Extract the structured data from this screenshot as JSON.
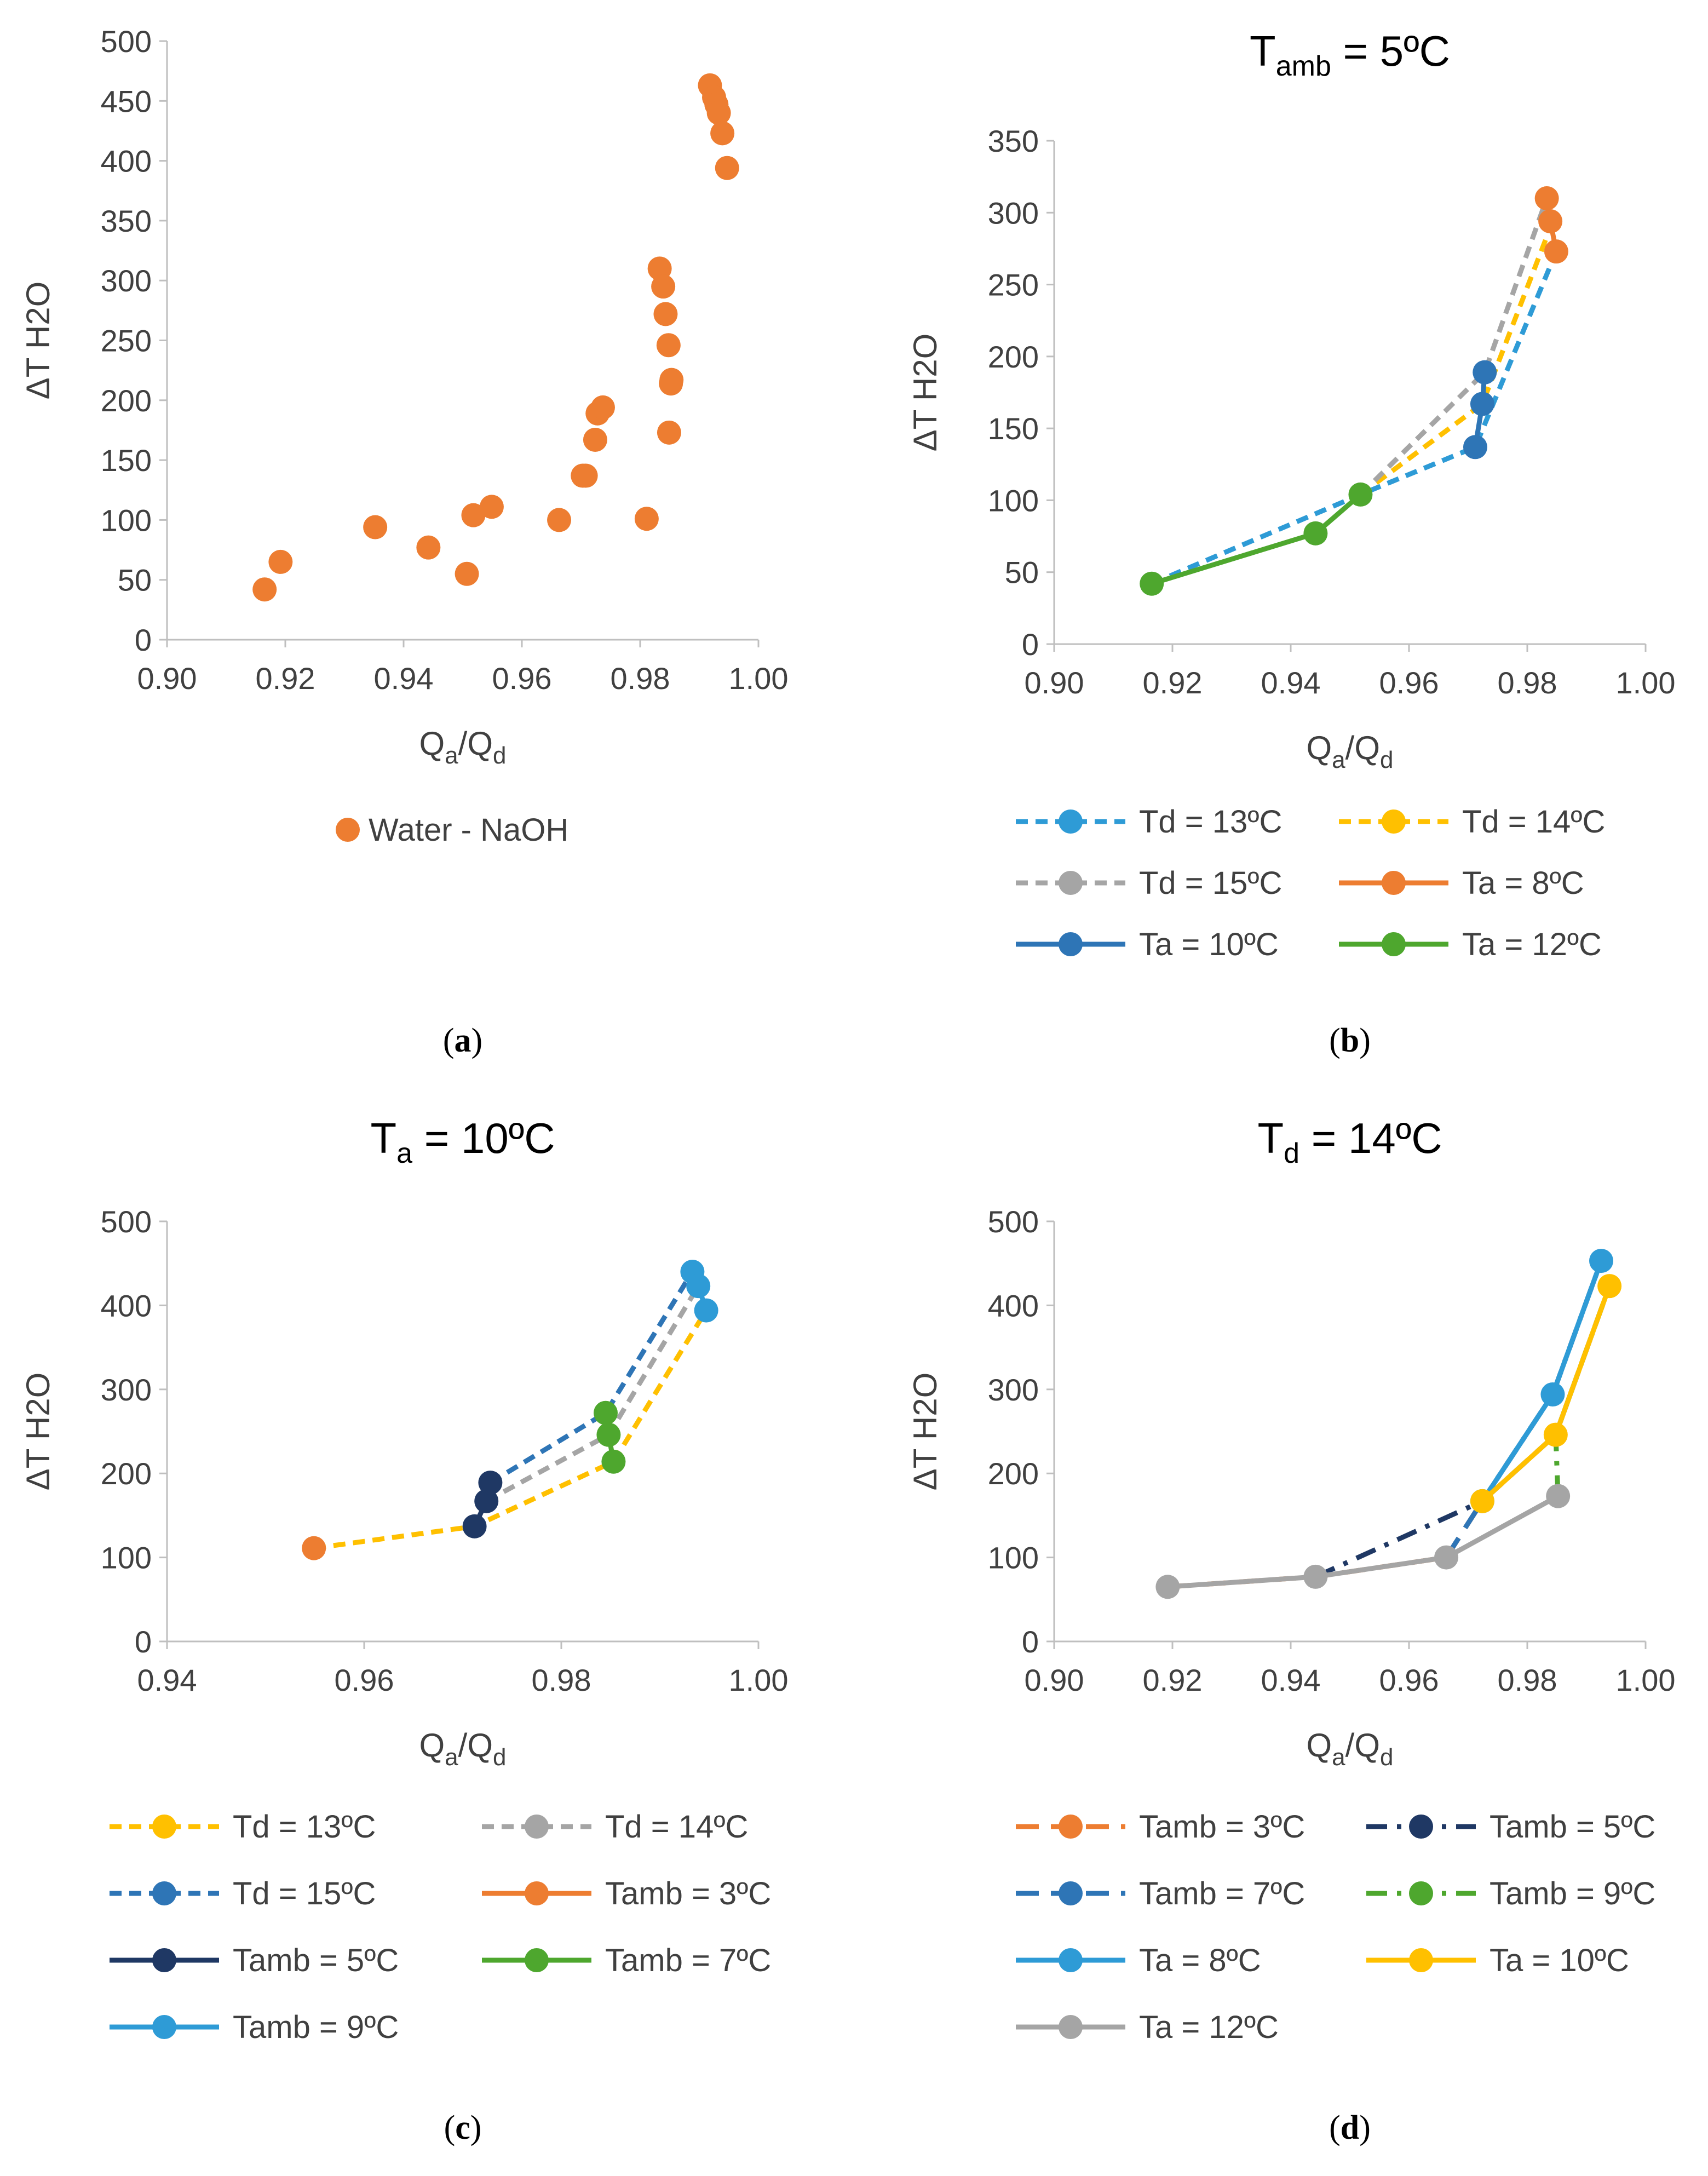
{
  "chart_data": [
    {
      "id": "a",
      "type": "scatter",
      "panel_label": "a",
      "title": "",
      "xlabel": "Qa/Qd",
      "ylabel": "ΔT H2O",
      "xlim": [
        0.9,
        1.0
      ],
      "ylim": [
        0,
        500
      ],
      "xticks": [
        0.9,
        0.92,
        0.94,
        0.96,
        0.98,
        1.0
      ],
      "yticks": [
        0,
        50,
        100,
        150,
        200,
        250,
        300,
        350,
        400,
        450,
        500
      ],
      "x_decimals": 2,
      "legend_layout": "single-below",
      "series": [
        {
          "name": "Water - NaOH",
          "color": "#ED7D31",
          "line": "none",
          "marker": true,
          "x": [
            0.9165,
            0.9192,
            0.9352,
            0.9442,
            0.9507,
            0.9518,
            0.9549,
            0.9663,
            0.9703,
            0.9708,
            0.9724,
            0.9728,
            0.9737,
            0.9811,
            0.9833,
            0.9839,
            0.9843,
            0.9848,
            0.9849,
            0.9852,
            0.9853,
            0.9918,
            0.9925,
            0.9929,
            0.9933,
            0.9939,
            0.9947
          ],
          "y": [
            42,
            65,
            94,
            77,
            55,
            104,
            111,
            100,
            137,
            137,
            167,
            189,
            194,
            101,
            310,
            295,
            272,
            246,
            173,
            214,
            217,
            463,
            453,
            447,
            440,
            423,
            394
          ]
        }
      ]
    },
    {
      "id": "b",
      "type": "line",
      "panel_label": "b",
      "title": "Tamb = 5ºC",
      "title_main": "T",
      "title_sub": "amb",
      "title_rest": " = 5ºC",
      "xlabel": "Qa/Qd",
      "ylabel": "ΔT H2O",
      "xlim": [
        0.9,
        1.0
      ],
      "ylim": [
        0,
        350
      ],
      "xticks": [
        0.9,
        0.92,
        0.94,
        0.96,
        0.98,
        1.0
      ],
      "yticks": [
        0,
        50,
        100,
        150,
        200,
        250,
        300,
        350
      ],
      "x_decimals": 2,
      "legend_layout": "two-columns-below",
      "series": [
        {
          "name": "Td = 13ºC",
          "color": "#2E9BD6",
          "line": "dash",
          "marker": false,
          "x": [
            0.9165,
            0.9518,
            0.9712,
            0.9849
          ],
          "y": [
            42,
            104,
            137,
            273
          ]
        },
        {
          "name": "Td = 14ºC",
          "color": "#FFC000",
          "line": "dash",
          "marker": false,
          "x": [
            0.9518,
            0.9724,
            0.9843
          ],
          "y": [
            104,
            167,
            294
          ]
        },
        {
          "name": "Td = 15ºC",
          "color": "#A5A5A5",
          "line": "dash",
          "marker": false,
          "x": [
            0.9518,
            0.9728,
            0.9833
          ],
          "y": [
            104,
            189,
            310
          ]
        },
        {
          "name": "Ta = 8ºC",
          "color": "#ED7D31",
          "line": "solid",
          "marker": true,
          "x": [
            0.9833,
            0.9839,
            0.9849
          ],
          "y": [
            310,
            294,
            273
          ]
        },
        {
          "name": "Ta = 10ºC",
          "color": "#2E75B6",
          "line": "solid",
          "marker": true,
          "x": [
            0.9712,
            0.9724,
            0.9728
          ],
          "y": [
            137,
            167,
            189
          ]
        },
        {
          "name": "Ta = 12ºC",
          "color": "#4EA72E",
          "line": "solid",
          "marker": true,
          "x": [
            0.9165,
            0.9442,
            0.9518
          ],
          "y": [
            42,
            77,
            104
          ]
        }
      ]
    },
    {
      "id": "c",
      "type": "line",
      "panel_label": "c",
      "title": "Ta = 10ºC",
      "title_main": "T",
      "title_sub": "a",
      "title_rest": " = 10ºC",
      "xlabel": "Qa/Qd",
      "ylabel": "ΔT H2O",
      "xlim": [
        0.94,
        1.0
      ],
      "ylim": [
        0,
        500
      ],
      "xticks": [
        0.94,
        0.96,
        0.98,
        1.0
      ],
      "yticks": [
        0,
        100,
        200,
        300,
        400,
        500
      ],
      "x_decimals": 2,
      "legend_layout": "two-columns-below",
      "series": [
        {
          "name": "Td = 13ºC",
          "color": "#FFC000",
          "line": "dash",
          "marker": false,
          "x": [
            0.9549,
            0.9712,
            0.9853,
            0.9947
          ],
          "y": [
            111,
            137,
            214,
            394
          ]
        },
        {
          "name": "Td = 14ºC",
          "color": "#A5A5A5",
          "line": "dash",
          "marker": false,
          "x": [
            0.9724,
            0.9848,
            0.9939
          ],
          "y": [
            167,
            246,
            423
          ]
        },
        {
          "name": "Td = 15ºC",
          "color": "#2E75B6",
          "line": "dash",
          "marker": false,
          "x": [
            0.9728,
            0.9845,
            0.9933
          ],
          "y": [
            189,
            272,
            440
          ]
        },
        {
          "name": "Tamb = 3ºC",
          "color": "#ED7D31",
          "line": "solid",
          "marker": true,
          "x": [
            0.9549
          ],
          "y": [
            111
          ]
        },
        {
          "name": "Tamb = 5ºC",
          "color": "#1F3864",
          "line": "solid",
          "marker": true,
          "x": [
            0.9712,
            0.9724,
            0.9728
          ],
          "y": [
            137,
            167,
            189
          ]
        },
        {
          "name": "Tamb = 7ºC",
          "color": "#4EA72E",
          "line": "solid",
          "marker": true,
          "x": [
            0.9845,
            0.9848,
            0.9853
          ],
          "y": [
            272,
            246,
            214
          ]
        },
        {
          "name": "Tamb = 9ºC",
          "color": "#2E9BD6",
          "line": "solid",
          "marker": true,
          "x": [
            0.9933,
            0.9939,
            0.9947
          ],
          "y": [
            440,
            423,
            394
          ]
        }
      ]
    },
    {
      "id": "d",
      "type": "line",
      "panel_label": "d",
      "title": "Td = 14ºC",
      "title_main": "T",
      "title_sub": "d",
      "title_rest": " = 14ºC",
      "xlabel": "Qa/Qd",
      "ylabel": "ΔT H2O",
      "xlim": [
        0.9,
        1.0
      ],
      "ylim": [
        0,
        500
      ],
      "xticks": [
        0.9,
        0.92,
        0.94,
        0.96,
        0.98,
        1.0
      ],
      "yticks": [
        0,
        100,
        200,
        300,
        400,
        500
      ],
      "x_decimals": 2,
      "legend_layout": "two-columns-below",
      "series": [
        {
          "name": "Tamb = 3ºC",
          "color": "#ED7D31",
          "line": "longdash",
          "marker": false,
          "x": [
            0.9192,
            0.9442,
            0.9663,
            0.9724
          ],
          "y": [
            65,
            77,
            100,
            167
          ]
        },
        {
          "name": "Tamb = 5ºC",
          "color": "#1F3864",
          "line": "dashdot",
          "marker": false,
          "x": [
            0.9442,
            0.9724,
            0.9843,
            0.9925
          ],
          "y": [
            77,
            167,
            294,
            453
          ]
        },
        {
          "name": "Tamb = 7ºC",
          "color": "#2E75B6",
          "line": "longdash",
          "marker": false,
          "x": [
            0.9663,
            0.9724,
            0.9848,
            0.9939
          ],
          "y": [
            100,
            167,
            246,
            423
          ]
        },
        {
          "name": "Tamb = 9ºC",
          "color": "#4EA72E",
          "line": "dashdot",
          "marker": false,
          "x": [
            0.9852,
            0.9848,
            0.9939
          ],
          "y": [
            173,
            246,
            423
          ]
        },
        {
          "name": "Ta = 8ºC",
          "color": "#2E9BD6",
          "line": "solid",
          "marker": true,
          "x": [
            0.9724,
            0.9843,
            0.9925
          ],
          "y": [
            167,
            294,
            453
          ]
        },
        {
          "name": "Ta = 10ºC",
          "color": "#FFC000",
          "line": "solid",
          "marker": true,
          "x": [
            0.9724,
            0.9848,
            0.9939
          ],
          "y": [
            167,
            246,
            423
          ]
        },
        {
          "name": "Ta = 12ºC",
          "color": "#A5A5A5",
          "line": "solid",
          "marker": true,
          "x": [
            0.9192,
            0.9442,
            0.9663,
            0.9852
          ],
          "y": [
            65,
            77,
            100,
            173
          ]
        }
      ]
    }
  ]
}
